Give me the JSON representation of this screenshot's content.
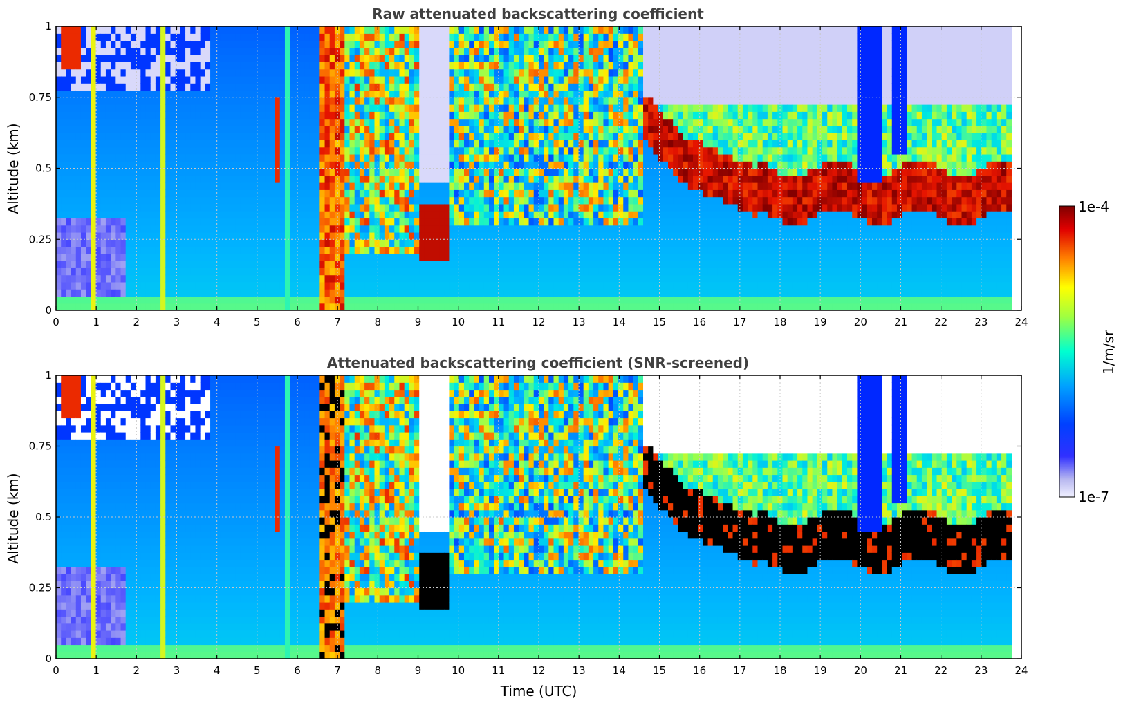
{
  "chart_data": [
    {
      "type": "heatmap",
      "title": "Raw attenuated backscattering coefficient",
      "xlabel": "",
      "ylabel": "Altitude (km)",
      "xlim": [
        0,
        24
      ],
      "ylim": [
        0,
        1
      ],
      "x_ticks": [
        "0",
        "1",
        "2",
        "3",
        "4",
        "5",
        "6",
        "7",
        "8",
        "9",
        "10",
        "11",
        "12",
        "13",
        "14",
        "15",
        "16",
        "17",
        "18",
        "19",
        "20",
        "21",
        "22",
        "23",
        "24"
      ],
      "y_ticks": [
        "0",
        "0.25",
        "0.5",
        "0.75",
        "1"
      ],
      "grid": true,
      "colorscale": "jet",
      "data_end_time": 23.75,
      "features": {
        "cloud_layer_base_km": [
          {
            "time": 15.5,
            "base": 0.45
          },
          {
            "time": 17.5,
            "base": 0.33
          },
          {
            "time": 19,
            "base": 0.33
          },
          {
            "time": 22,
            "base": 0.32
          },
          {
            "time": 23.75,
            "base": 0.33
          }
        ],
        "rain_shaft_time": [
          6.5,
          7.2
        ],
        "low_cloud_time": [
          9,
          9.8
        ],
        "low_cloud_base_km": 0.2
      }
    },
    {
      "type": "heatmap",
      "title": "Attenuated backscattering coefficient (SNR-screened)",
      "xlabel": "Time (UTC)",
      "ylabel": "Altitude (km)",
      "xlim": [
        0,
        24
      ],
      "ylim": [
        0,
        1
      ],
      "x_ticks": [
        "0",
        "1",
        "2",
        "3",
        "4",
        "5",
        "6",
        "7",
        "8",
        "9",
        "10",
        "11",
        "12",
        "13",
        "14",
        "15",
        "16",
        "17",
        "18",
        "19",
        "20",
        "21",
        "22",
        "23",
        "24"
      ],
      "y_ticks": [
        "0",
        "0.25",
        "0.5",
        "0.75",
        "1"
      ],
      "grid": true,
      "colorscale": "jet",
      "data_end_time": 23.75,
      "saturated_color": "#000000"
    }
  ],
  "colorbar": {
    "label": "1/m/sr",
    "max_label": "1e-4",
    "min_label": "1e-7",
    "scale": "log",
    "range": [
      1e-07,
      0.0001
    ]
  }
}
